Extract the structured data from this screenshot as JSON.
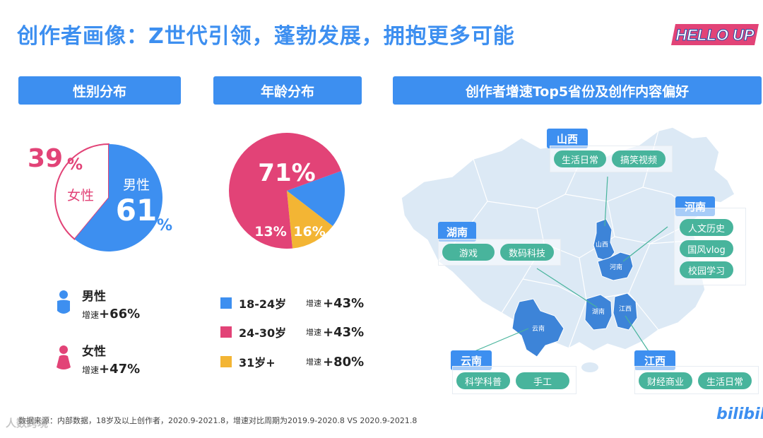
{
  "page": {
    "title": "创作者画像：Z世代引领，蓬勃发展，拥抱更多可能",
    "logo_text": "HELLO UP",
    "platform_logo": "bilibili",
    "watermark": "人数跨境",
    "footnote": "数据来源：内部数据，18岁及以上创作者，2020.9-2021.8，增速对比周期为2019.9-2020.8 VS 2020.9-2021.8"
  },
  "sections": {
    "gender": "性别分布",
    "age": "年龄分布",
    "map": "创作者增速Top5省份及创作内容偏好"
  },
  "colors": {
    "blue": "#3d8ff0",
    "pink": "#e24377",
    "yellow": "#f3b534",
    "teal": "#48b49c",
    "map_fill": "#dce9f5",
    "highlight_fill": "#3d84d8"
  },
  "chart_data": [
    {
      "type": "pie",
      "title": "性别分布",
      "slices": [
        {
          "name": "男性",
          "value": 61,
          "label": "61",
          "unit": "%",
          "color": "#3d8ff0",
          "style": "filled"
        },
        {
          "name": "女性",
          "value": 39,
          "label": "39",
          "unit": "%",
          "color": "#e24377",
          "style": "outline"
        }
      ],
      "legend": [
        {
          "name": "男性",
          "growth_label": "增速",
          "growth": "+66%",
          "icon": "male-person-icon",
          "color": "#3d8ff0"
        },
        {
          "name": "女性",
          "growth_label": "增速",
          "growth": "+47%",
          "icon": "female-person-icon",
          "color": "#e24377"
        }
      ]
    },
    {
      "type": "pie",
      "title": "年龄分布",
      "slices": [
        {
          "name": "18-24岁",
          "value": 16,
          "label": "16%",
          "color": "#3d8ff0"
        },
        {
          "name": "24-30岁",
          "value": 71,
          "label": "71%",
          "color": "#e24377"
        },
        {
          "name": "31岁+",
          "value": 13,
          "label": "13%",
          "color": "#f3b534"
        }
      ],
      "legend": [
        {
          "name": "18-24岁",
          "growth_label": "增速",
          "growth": "+43%",
          "color": "#3d8ff0"
        },
        {
          "name": "24-30岁",
          "growth_label": "增速",
          "growth": "+43%",
          "color": "#e24377"
        },
        {
          "name": "31岁+",
          "growth_label": "增速",
          "growth": "+80%",
          "color": "#f3b534"
        }
      ]
    }
  ],
  "map": {
    "provinces": [
      {
        "name": "山西",
        "map_label": "山西",
        "tags": [
          "生活日常",
          "搞笑视频"
        ]
      },
      {
        "name": "河南",
        "map_label": "河南",
        "tags": [
          "人文历史",
          "国风vlog",
          "校园学习"
        ]
      },
      {
        "name": "湖南",
        "map_label": "湖南",
        "tags": [
          "游戏",
          "数码科技"
        ]
      },
      {
        "name": "云南",
        "map_label": "云南",
        "tags": [
          "科学科普",
          "手工"
        ]
      },
      {
        "name": "江西",
        "map_label": "江西",
        "tags": [
          "财经商业",
          "生活日常"
        ]
      }
    ]
  }
}
